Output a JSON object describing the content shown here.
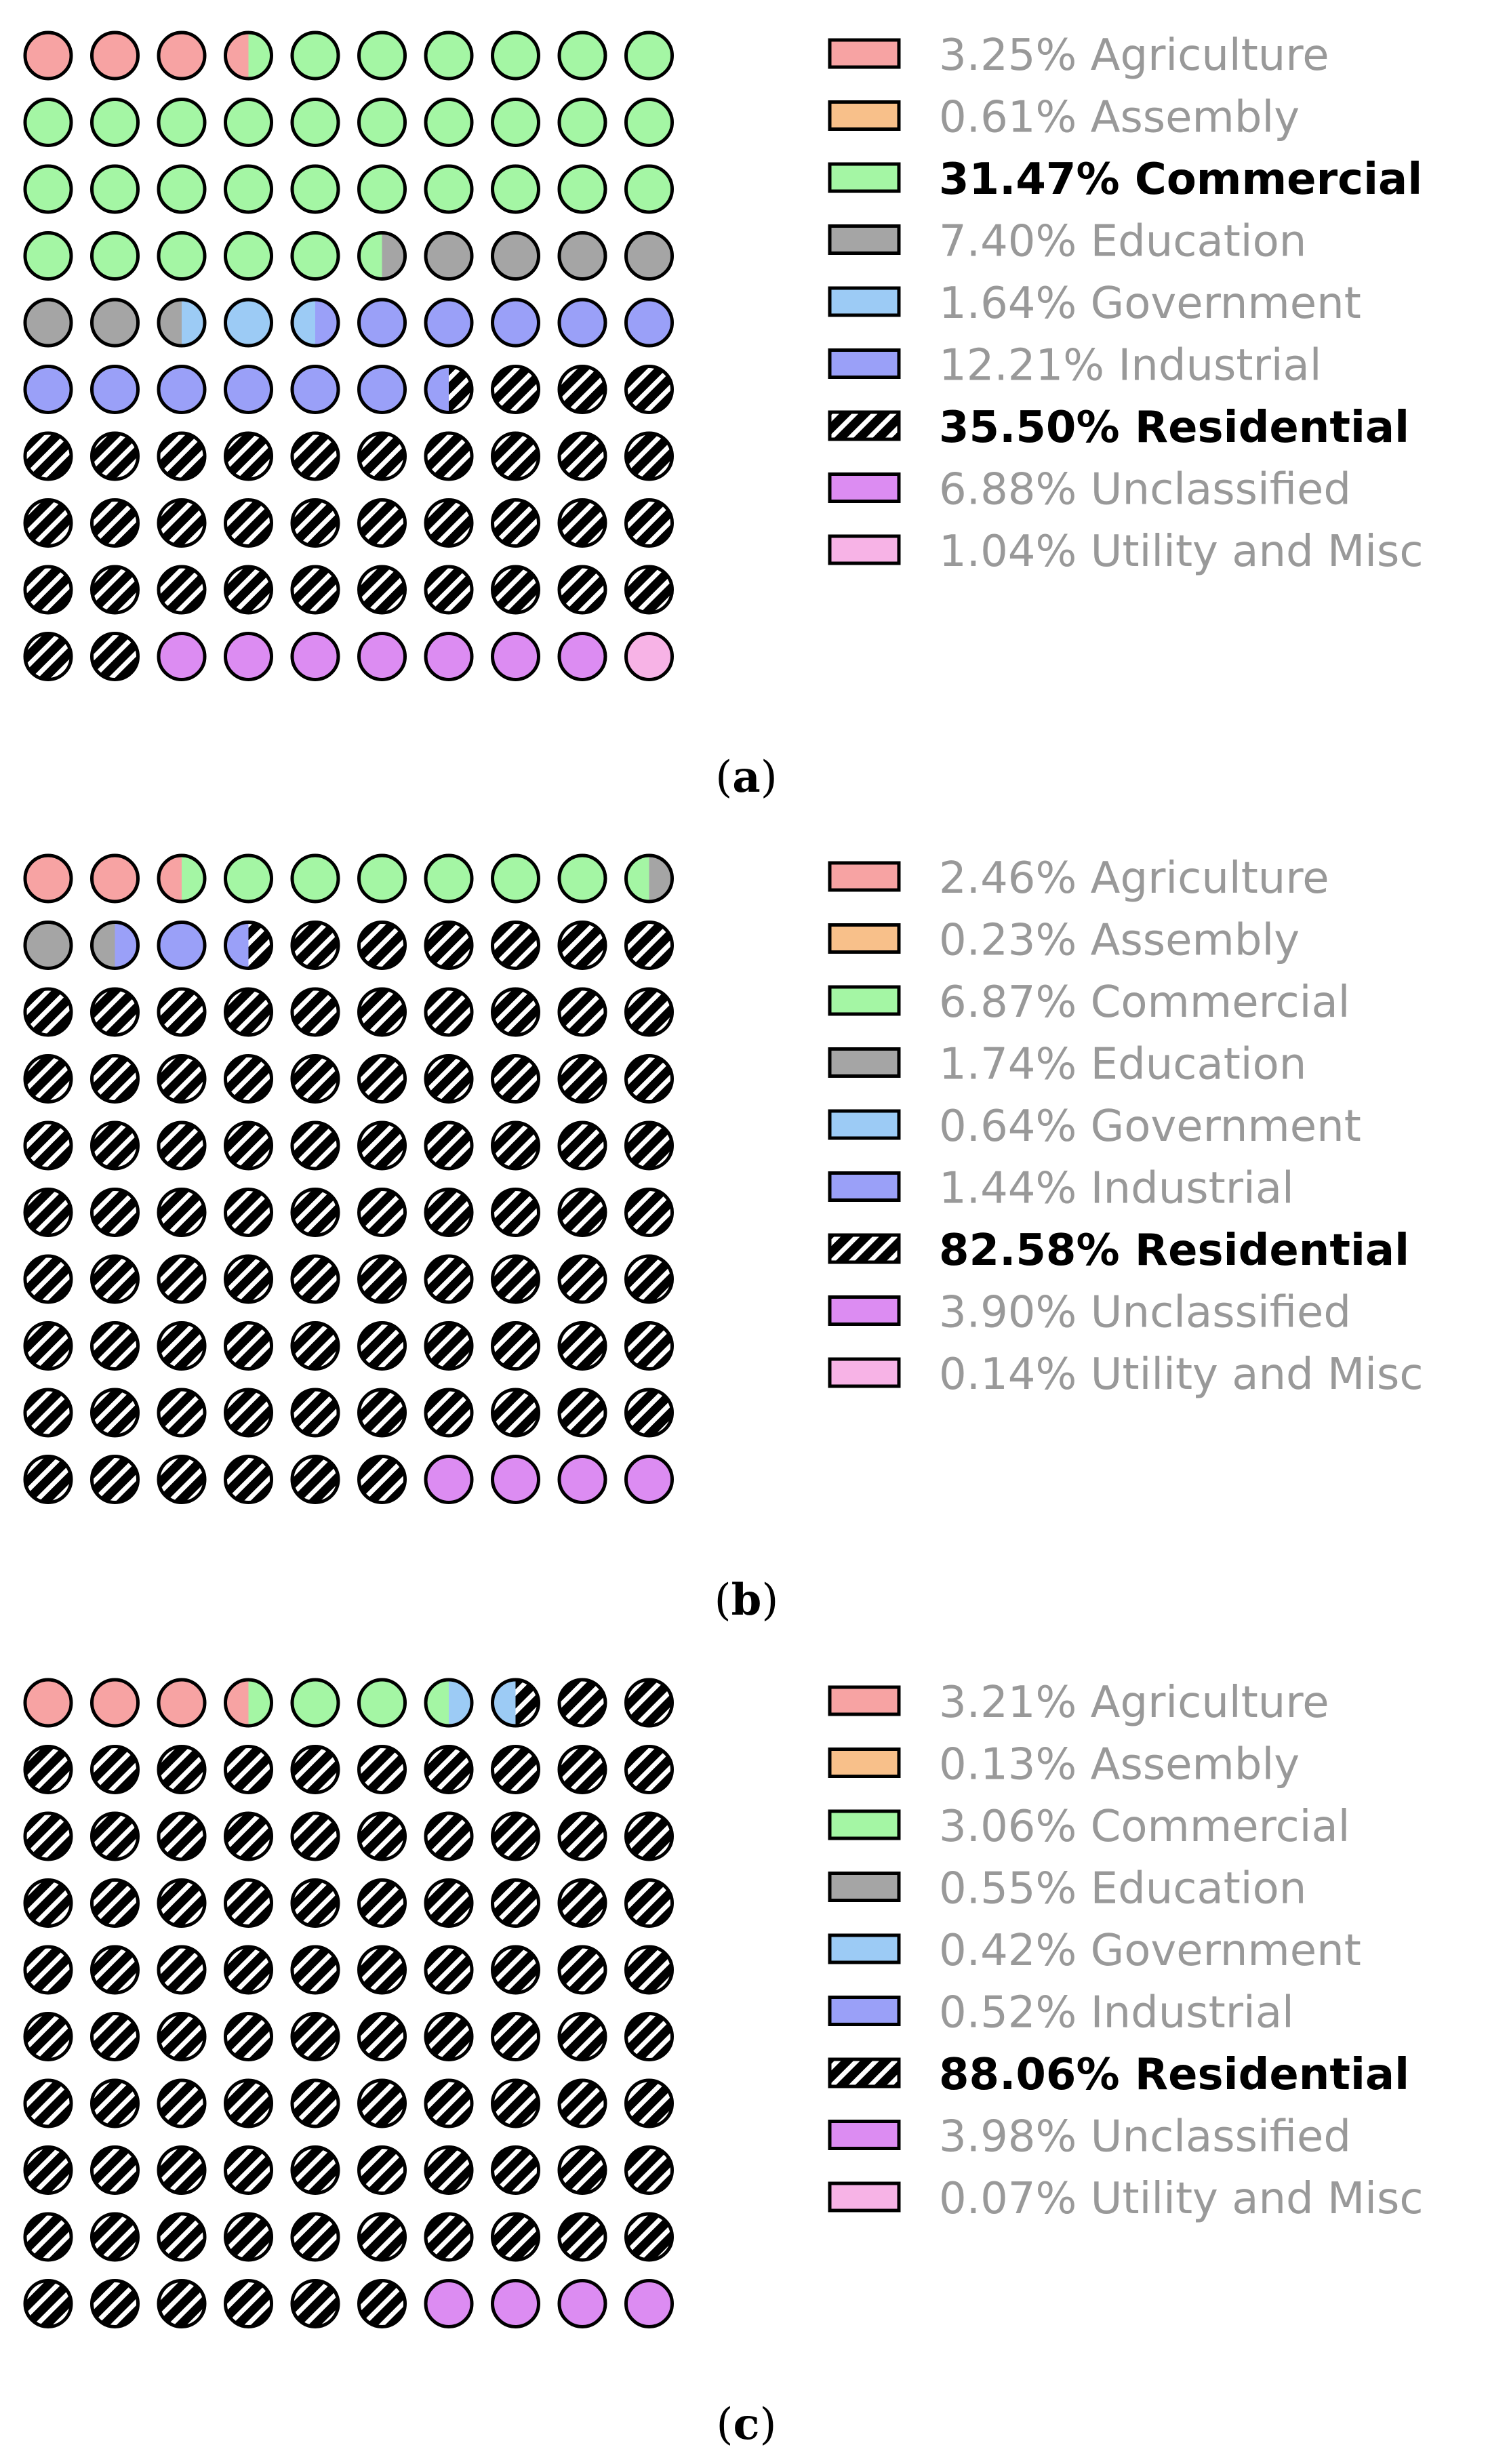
{
  "colors": {
    "Agriculture": "#f7a3a3",
    "Assembly": "#f8c08a",
    "Commercial": "#a4f6a4",
    "Education": "#a5a5a5",
    "Government": "#9ccbf5",
    "Industrial": "#9aa0f8",
    "Residential": "hatch",
    "Unclassified": "#dc8cf2",
    "Utility and Misc": "#f7b3e6"
  },
  "chart_data": [
    {
      "type": "waffle",
      "panel": "(a)",
      "grid": [
        10,
        10
      ],
      "categories": [
        "Agriculture",
        "Assembly",
        "Commercial",
        "Education",
        "Government",
        "Industrial",
        "Residential",
        "Unclassified",
        "Utility and Misc"
      ],
      "percent_labels": [
        "3.25%",
        "0.61%",
        "31.47%",
        "7.40%",
        "1.64%",
        "12.21%",
        "35.50%",
        "6.88%",
        "1.04%"
      ],
      "values": [
        3.25,
        0.61,
        31.47,
        7.4,
        1.64,
        12.21,
        35.5,
        6.88,
        1.04
      ],
      "highlighted": [
        "Commercial",
        "Residential"
      ]
    },
    {
      "type": "waffle",
      "panel": "(b)",
      "grid": [
        10,
        10
      ],
      "categories": [
        "Agriculture",
        "Assembly",
        "Commercial",
        "Education",
        "Government",
        "Industrial",
        "Residential",
        "Unclassified",
        "Utility and Misc"
      ],
      "percent_labels": [
        "2.46%",
        "0.23%",
        "6.87%",
        "1.74%",
        "0.64%",
        "1.44%",
        "82.58%",
        "3.90%",
        "0.14%"
      ],
      "values": [
        2.46,
        0.23,
        6.87,
        1.74,
        0.64,
        1.44,
        82.58,
        3.9,
        0.14
      ],
      "highlighted": [
        "Residential"
      ]
    },
    {
      "type": "waffle",
      "panel": "(c)",
      "grid": [
        10,
        10
      ],
      "categories": [
        "Agriculture",
        "Assembly",
        "Commercial",
        "Education",
        "Government",
        "Industrial",
        "Residential",
        "Unclassified",
        "Utility and Misc"
      ],
      "percent_labels": [
        "3.21%",
        "0.13%",
        "3.06%",
        "0.55%",
        "0.42%",
        "0.52%",
        "88.06%",
        "3.98%",
        "0.07%"
      ],
      "values": [
        3.21,
        0.13,
        3.06,
        0.55,
        0.42,
        0.52,
        88.06,
        3.98,
        0.07
      ],
      "highlighted": [
        "Residential"
      ]
    }
  ]
}
